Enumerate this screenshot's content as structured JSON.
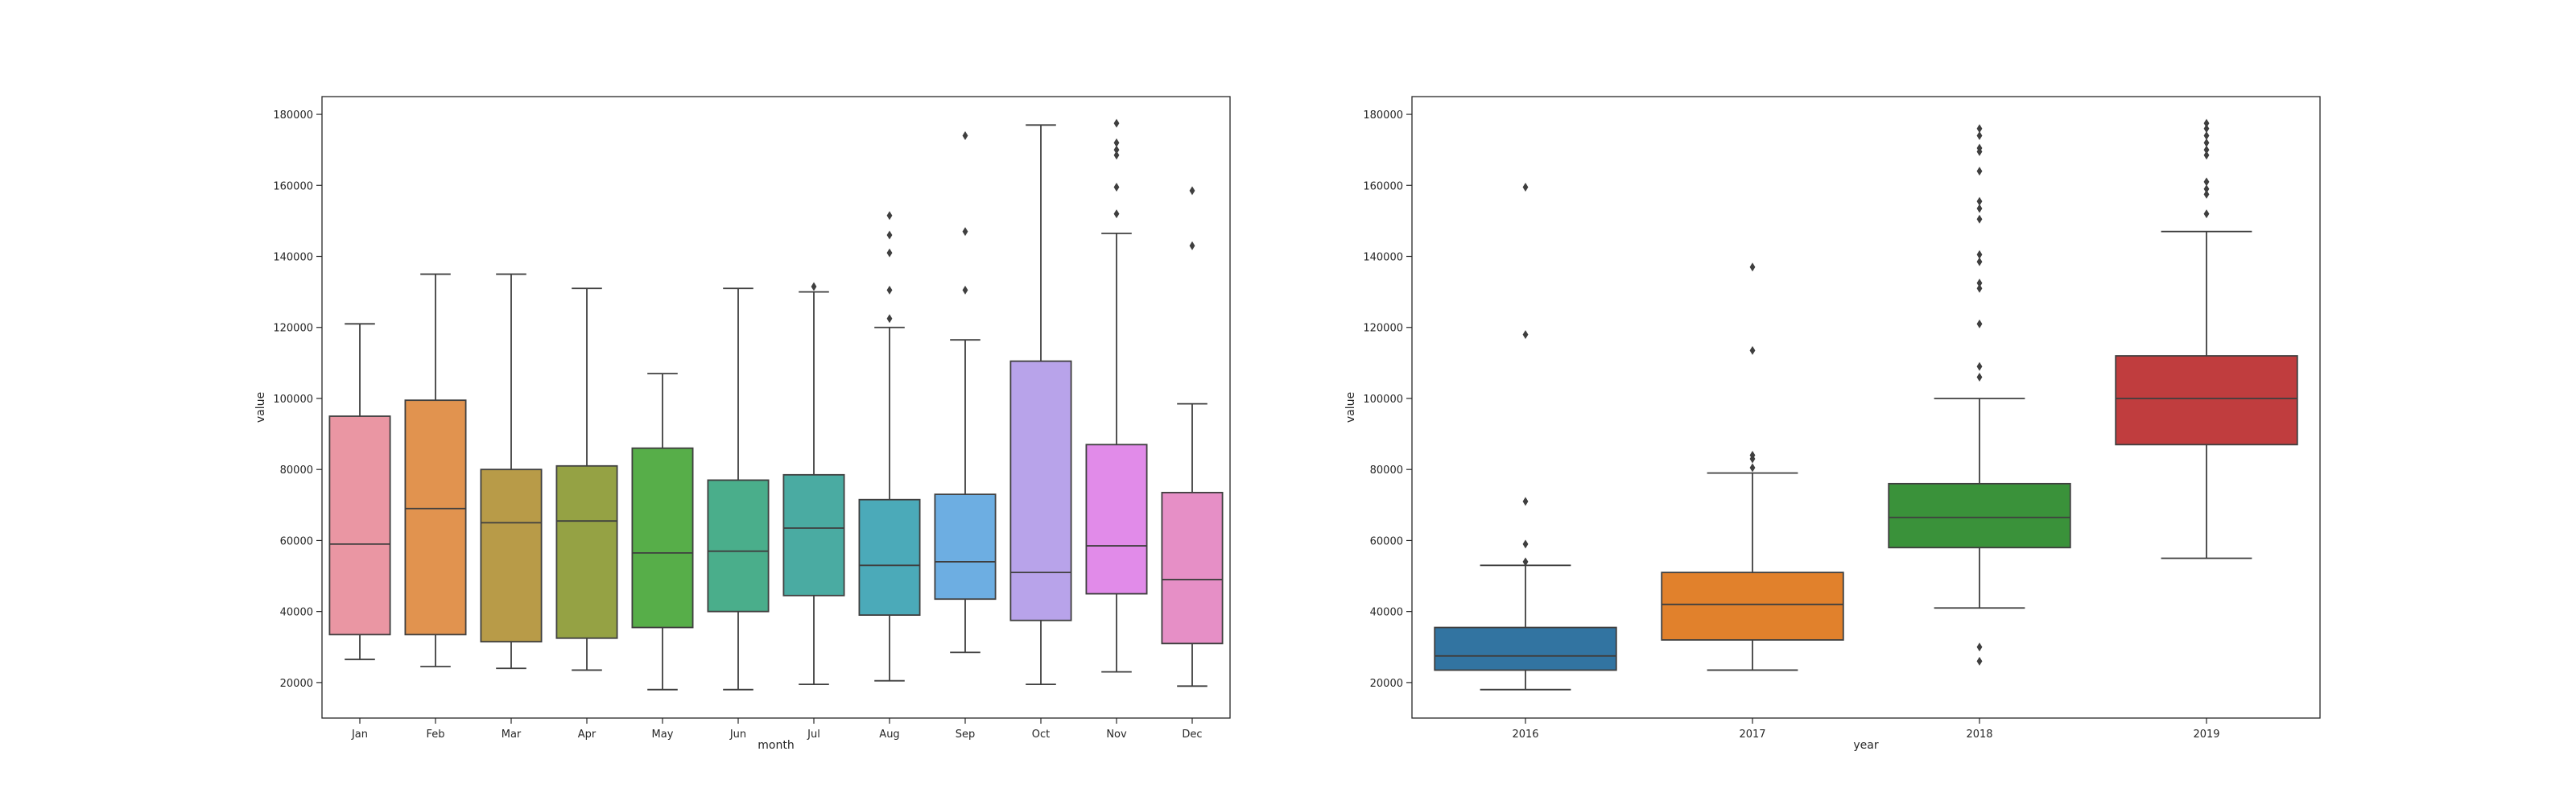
{
  "chart_data": [
    {
      "type": "box",
      "xlabel": "month",
      "ylabel": "value",
      "ylim": [
        10000,
        185000
      ],
      "yticks": [
        20000,
        40000,
        60000,
        80000,
        100000,
        120000,
        140000,
        160000,
        180000
      ],
      "ytick_labels": [
        "20000",
        "40000",
        "60000",
        "80000",
        "100000",
        "120000",
        "140000",
        "160000",
        "180000"
      ],
      "categories": [
        "Jan",
        "Feb",
        "Mar",
        "Apr",
        "May",
        "Jun",
        "Jul",
        "Aug",
        "Sep",
        "Oct",
        "Nov",
        "Dec"
      ],
      "boxes": [
        {
          "category": "Jan",
          "color": "#ea96a3",
          "whislo": 26500,
          "q1": 33500,
          "med": 59000,
          "q3": 95000,
          "whishi": 121000,
          "fliers": []
        },
        {
          "category": "Feb",
          "color": "#e1934f",
          "whislo": 24500,
          "q1": 33500,
          "med": 69000,
          "q3": 99500,
          "whishi": 135000,
          "fliers": []
        },
        {
          "category": "Mar",
          "color": "#b89b48",
          "whislo": 24000,
          "q1": 31500,
          "med": 65000,
          "q3": 80000,
          "whishi": 135000,
          "fliers": []
        },
        {
          "category": "Apr",
          "color": "#95a244",
          "whislo": 23500,
          "q1": 32500,
          "med": 65500,
          "q3": 81000,
          "whishi": 131000,
          "fliers": []
        },
        {
          "category": "May",
          "color": "#57ae49",
          "whislo": 18000,
          "q1": 35500,
          "med": 56500,
          "q3": 86000,
          "whishi": 107000,
          "fliers": []
        },
        {
          "category": "Jun",
          "color": "#4aae8b",
          "whislo": 18000,
          "q1": 40000,
          "med": 57000,
          "q3": 77000,
          "whishi": 131000,
          "fliers": []
        },
        {
          "category": "Jul",
          "color": "#4aaba2",
          "whislo": 19500,
          "q1": 44500,
          "med": 63500,
          "q3": 78500,
          "whishi": 130000,
          "fliers": [
            131500
          ]
        },
        {
          "category": "Aug",
          "color": "#4baab9",
          "whislo": 20500,
          "q1": 39000,
          "med": 53000,
          "q3": 71500,
          "whishi": 120000,
          "fliers": [
            122500,
            130500,
            141000,
            146000,
            151500
          ]
        },
        {
          "category": "Sep",
          "color": "#6daee2",
          "whislo": 28500,
          "q1": 43500,
          "med": 54000,
          "q3": 73000,
          "whishi": 116500,
          "fliers": [
            130500,
            147000,
            174000
          ]
        },
        {
          "category": "Oct",
          "color": "#b8a3ea",
          "whislo": 19500,
          "q1": 37500,
          "med": 51000,
          "q3": 110500,
          "whishi": 177000,
          "fliers": []
        },
        {
          "category": "Nov",
          "color": "#e18be9",
          "whislo": 23000,
          "q1": 45000,
          "med": 58500,
          "q3": 87000,
          "whishi": 146500,
          "fliers": [
            152000,
            159500,
            168500,
            170000,
            172000,
            177500
          ]
        },
        {
          "category": "Dec",
          "color": "#e68fc6",
          "whislo": 19000,
          "q1": 31000,
          "med": 49000,
          "q3": 73500,
          "whishi": 98500,
          "fliers": [
            143000,
            158500
          ]
        }
      ]
    },
    {
      "type": "box",
      "xlabel": "year",
      "ylabel": "value",
      "ylim": [
        10000,
        185000
      ],
      "yticks": [
        20000,
        40000,
        60000,
        80000,
        100000,
        120000,
        140000,
        160000,
        180000
      ],
      "ytick_labels": [
        "20000",
        "40000",
        "60000",
        "80000",
        "100000",
        "120000",
        "140000",
        "160000",
        "180000"
      ],
      "categories": [
        "2016",
        "2017",
        "2018",
        "2019"
      ],
      "boxes": [
        {
          "category": "2016",
          "color": "#3274a1",
          "whislo": 18000,
          "q1": 23500,
          "med": 27500,
          "q3": 35500,
          "whishi": 53000,
          "fliers": [
            54000,
            59000,
            71000,
            118000,
            159500
          ]
        },
        {
          "category": "2017",
          "color": "#e1812c",
          "whislo": 23500,
          "q1": 32000,
          "med": 42000,
          "q3": 51000,
          "whishi": 79000,
          "fliers": [
            80500,
            83000,
            84000,
            113500,
            137000
          ]
        },
        {
          "category": "2018",
          "color": "#3a923a",
          "whislo": 41000,
          "q1": 58000,
          "med": 66500,
          "q3": 76000,
          "whishi": 100000,
          "fliers": [
            26000,
            30000,
            106000,
            109000,
            121000,
            131000,
            132500,
            138500,
            140500,
            150500,
            153500,
            155500,
            164000,
            169500,
            170500,
            174000,
            176000
          ]
        },
        {
          "category": "2019",
          "color": "#c03d3e",
          "whislo": 55000,
          "q1": 87000,
          "med": 100000,
          "q3": 112000,
          "whishi": 147000,
          "fliers": [
            152000,
            157500,
            159000,
            161000,
            168500,
            170000,
            172000,
            174000,
            176000,
            177500
          ]
        }
      ]
    }
  ]
}
